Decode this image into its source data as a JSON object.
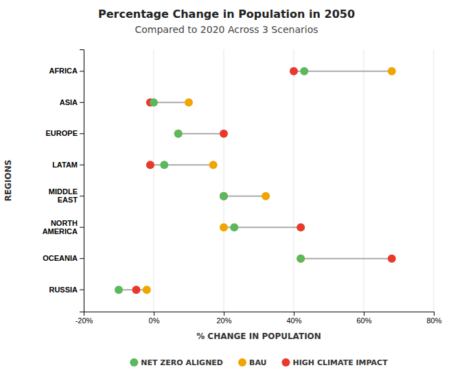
{
  "chart_data": {
    "type": "dumbbell",
    "orientation": "horizontal",
    "title": "Percentage Change in Population in 2050",
    "subtitle": "Compared to 2020 Across 3 Scenarios",
    "x_label": "% CHANGE IN POPULATION",
    "y_label": "REGIONS",
    "categories": [
      "AFRICA",
      "ASIA",
      "EUROPE",
      "LATAM",
      "MIDDLE\nEAST",
      "NORTH\nAMERICA",
      "OCEANIA",
      "RUSSIA"
    ],
    "series": [
      {
        "name": "NET ZERO ALIGNED",
        "color": "#5cb85c",
        "values": [
          43,
          0,
          7,
          3,
          20,
          23,
          42,
          -10
        ]
      },
      {
        "name": "BAU",
        "color": "#f0a500",
        "values": [
          68,
          10,
          7,
          17,
          32,
          20,
          42,
          -2
        ]
      },
      {
        "name": "HIGH CLIMATE IMPACT",
        "color": "#e8392a",
        "values": [
          40,
          -1,
          20,
          -1,
          20,
          42,
          68,
          -5
        ]
      }
    ],
    "xlim": [
      -20,
      80
    ],
    "xticks": [
      {
        "value": -20,
        "label": "-20%"
      },
      {
        "value": 0,
        "label": "0%"
      },
      {
        "value": 20,
        "label": "20%"
      },
      {
        "value": 40,
        "label": "40%"
      },
      {
        "value": 60,
        "label": "60%"
      },
      {
        "value": 80,
        "label": "80%"
      }
    ],
    "grid": true,
    "legend": "bottom"
  }
}
